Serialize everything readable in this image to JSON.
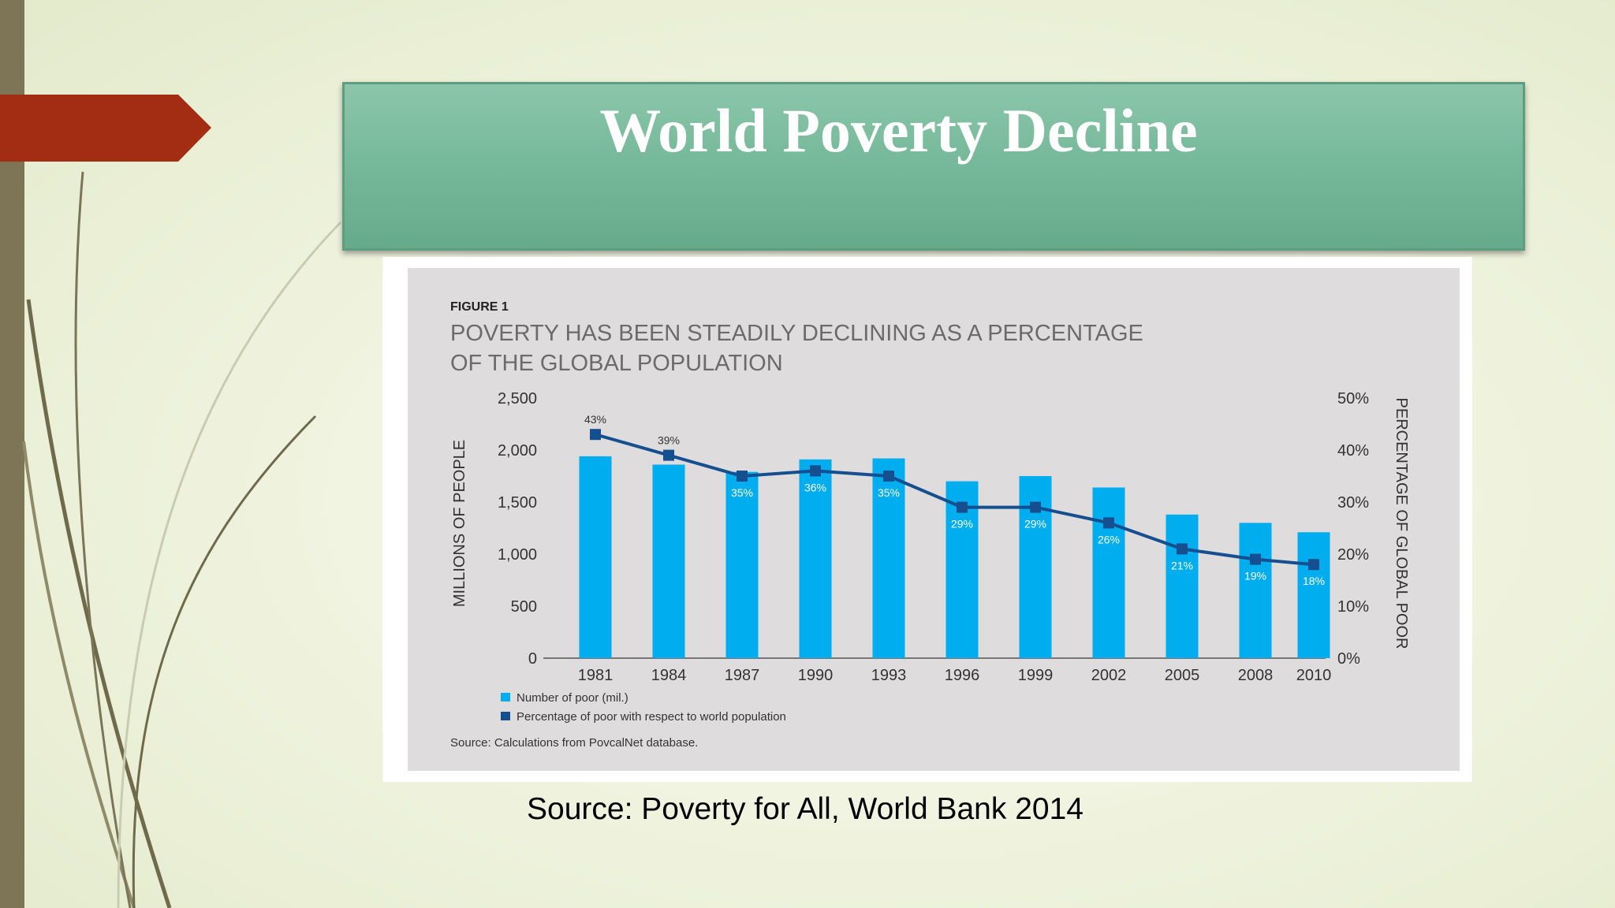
{
  "slide": {
    "title": "World Poverty Decline",
    "source": "Source: Poverty for All, World Bank 2014"
  },
  "colors": {
    "bar": "#00adee",
    "line": "#154f8f",
    "title_box": "#77b99b",
    "arrow": "#a32d12",
    "side_bar": "#7d7556"
  },
  "figure": {
    "label": "FIGURE 1",
    "heading_line1": "POVERTY HAS BEEN STEADILY DECLINING AS A PERCENTAGE",
    "heading_line2": "OF THE GLOBAL POPULATION",
    "source": "Source: Calculations from PovcalNet database."
  },
  "chart_data": {
    "type": "bar",
    "categories": [
      "1981",
      "1984",
      "1987",
      "1990",
      "1993",
      "1996",
      "1999",
      "2002",
      "2005",
      "2008",
      "2010"
    ],
    "series": [
      {
        "name": "Number of poor (mil.)",
        "type": "bar",
        "axis": "left",
        "values": [
          1940,
          1860,
          1790,
          1910,
          1920,
          1700,
          1750,
          1640,
          1380,
          1300,
          1210
        ]
      },
      {
        "name": "Percentage of poor with respect to world population",
        "type": "line",
        "axis": "right",
        "values": [
          43,
          39,
          35,
          36,
          35,
          29,
          29,
          26,
          21,
          19,
          18
        ],
        "labels": [
          "43%",
          "39%",
          "35%",
          "36%",
          "35%",
          "29%",
          "29%",
          "26%",
          "21%",
          "19%",
          "18%"
        ]
      }
    ],
    "ylabel": "MILLIONS OF PEOPLE",
    "ylabel_right": "PERCENTAGE OF GLOBAL POOR",
    "ylim": [
      0,
      2500
    ],
    "ylim_right": [
      0,
      50
    ],
    "yticks": [
      "0",
      "500",
      "1,000",
      "1,500",
      "2,000",
      "2,500"
    ],
    "yticks_right": [
      "0%",
      "10%",
      "20%",
      "30%",
      "40%",
      "50%"
    ],
    "grid": false,
    "legend_position": "bottom-left"
  }
}
